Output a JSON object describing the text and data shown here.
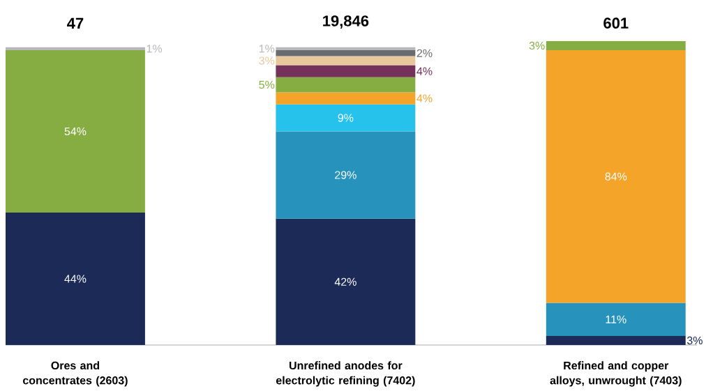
{
  "chart_data": {
    "type": "bar",
    "stacked": true,
    "categories": [
      "Ores and concentrates (2603)",
      "Unrefined anodes for electrolytic refining (7402)",
      "Refined and copper alloys, unwrought (7403)"
    ],
    "annotations": [
      "47",
      "19,846",
      "601"
    ],
    "series": [
      {
        "color": "#1b2a56",
        "values": [
          44,
          42,
          3
        ],
        "value_labels": [
          "44%",
          "42%",
          "3%"
        ]
      },
      {
        "color": "#2793bc",
        "values": [
          null,
          29,
          11
        ],
        "value_labels": [
          null,
          "29%",
          "11%"
        ]
      },
      {
        "color": "#27c2ec",
        "values": [
          null,
          9,
          null
        ],
        "value_labels": [
          null,
          "9%",
          null
        ]
      },
      {
        "color": "#f5a42a",
        "values": [
          null,
          4,
          84
        ],
        "value_labels": [
          null,
          "4%",
          "84%"
        ]
      },
      {
        "color": "#86ad42",
        "values": [
          54,
          5,
          3
        ],
        "value_labels": [
          "54%",
          "5%",
          "3%"
        ]
      },
      {
        "color": "#74325a",
        "values": [
          null,
          4,
          null
        ],
        "value_labels": [
          null,
          "4%",
          null
        ]
      },
      {
        "color": "#e8c79c",
        "values": [
          null,
          3,
          null
        ],
        "value_labels": [
          null,
          "3%",
          null
        ]
      },
      {
        "color": "#6a6b6e",
        "values": [
          null,
          2,
          null
        ],
        "value_labels": [
          null,
          "2%",
          null
        ]
      },
      {
        "color": "#b8b8bb",
        "values": [
          1,
          1,
          null
        ],
        "value_labels": [
          "1%",
          "1%",
          null
        ]
      }
    ]
  }
}
